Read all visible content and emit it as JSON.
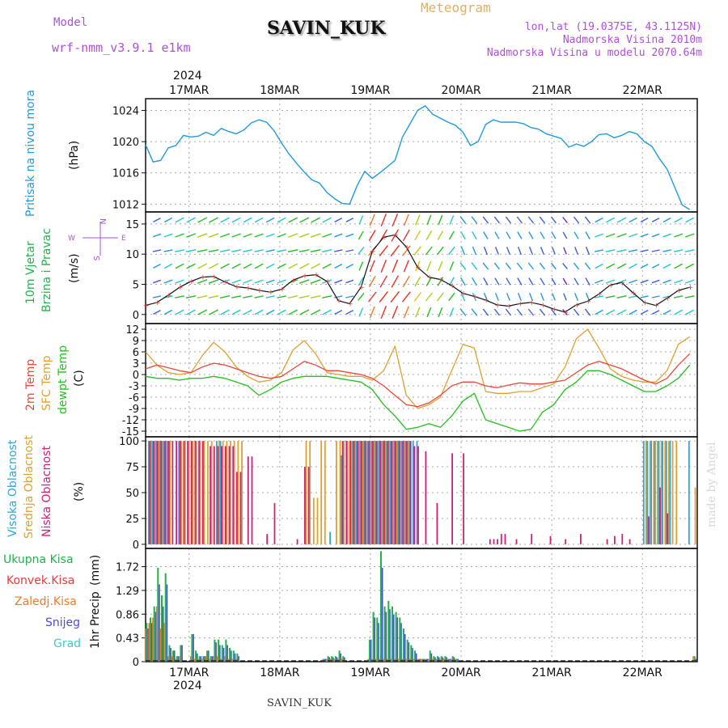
{
  "header": {
    "model_label": "Model",
    "model_name": "wrf-nmm_v3.9.1  e1km",
    "station": "SAVIN_KUK",
    "meteogram": "Meteogram",
    "lonlat": "lon,lat (19.0375E, 43.1125N)",
    "elev": "Nadmorska Visina 2010m",
    "elev_model": "Nadmorska Visina u modelu 2070.64m",
    "credit": "made by Angel",
    "footer_station": "SAVIN_KUK",
    "year_top": "2024",
    "year_bottom": "2024"
  },
  "colors": {
    "pressure": "#1e9be0",
    "temp2m": "#e84a3a",
    "sfc": "#e0a030",
    "dew": "#22c11e",
    "cloud_high": "#2aa8e0",
    "cloud_mid": "#e0a030",
    "cloud_low": "#d0207a",
    "precip_total": "#22b24a",
    "precip_conv": "#e83a3a",
    "precip_frz": "#f07a22",
    "snow": "#4a4ae0",
    "hail": "#40c8c8",
    "title_purple": "#b050d8",
    "title_orange": "#e0b060"
  },
  "chart_data": {
    "type": "meteogram",
    "x_ticks": [
      "17MAR",
      "18MAR",
      "19MAR",
      "20MAR",
      "21MAR",
      "22MAR"
    ],
    "x_unit": "hours from 16MAR 12UTC",
    "pressure": {
      "ylabel": "Pritisak na nivou mora",
      "unit": "(hPa)",
      "yticks": [
        1012,
        1016,
        1020,
        1024
      ],
      "ylim": [
        1011,
        1025.5
      ],
      "x": [
        0,
        2,
        4,
        6,
        8,
        10,
        12,
        14,
        16,
        18,
        20,
        22,
        24,
        26,
        28,
        30,
        32,
        34,
        36,
        38,
        40,
        42,
        44,
        46,
        48,
        50,
        52,
        54,
        56,
        58,
        60,
        62,
        64,
        66,
        68,
        70,
        72,
        74,
        76,
        78,
        80,
        82,
        84,
        86,
        88,
        90,
        92,
        94,
        96,
        98,
        100,
        102,
        104,
        106,
        108,
        110,
        112,
        114,
        116,
        118,
        120,
        122,
        124,
        126,
        128,
        130,
        132,
        134,
        136,
        138,
        140,
        142,
        144
      ],
      "values": [
        1019.6,
        1017.4,
        1017.6,
        1019.2,
        1019.5,
        1020.8,
        1020.6,
        1020.7,
        1021.2,
        1020.8,
        1021.7,
        1021.3,
        1021.0,
        1021.5,
        1022.4,
        1022.8,
        1022.5,
        1021.4,
        1019.8,
        1018.4,
        1017.2,
        1016.1,
        1015.1,
        1014.7,
        1013.5,
        1012.7,
        1012.1,
        1012.0,
        1014.4,
        1016.2,
        1015.3,
        1016.0,
        1016.8,
        1017.6,
        1020.6,
        1022.3,
        1024.0,
        1024.6,
        1023.5,
        1023.0,
        1022.5,
        1022.1,
        1021.2,
        1019.5,
        1020.0,
        1022.2,
        1022.8,
        1022.5,
        1022.5,
        1022.5,
        1022.3,
        1021.8,
        1021.6,
        1021.0,
        1020.7,
        1020.4,
        1019.3,
        1019.7,
        1019.4,
        1020.0,
        1020.9,
        1021.0,
        1020.5,
        1020.8,
        1021.3,
        1021.0,
        1020.0,
        1019.4,
        1017.8,
        1016.5,
        1014.2,
        1011.9,
        1011.3
      ]
    },
    "wind": {
      "ylabel": "10m Vjetar",
      "ylabel2": "Brzina i Pravac",
      "unit": "(m/s)",
      "compass": [
        "N",
        "W",
        "E",
        "S"
      ],
      "yticks": [
        0,
        5,
        10,
        15
      ],
      "ylim": [
        -1.5,
        17
      ],
      "x": [
        0,
        3,
        6,
        9,
        12,
        15,
        18,
        21,
        24,
        27,
        30,
        33,
        36,
        39,
        42,
        45,
        48,
        51,
        54,
        57,
        60,
        63,
        66,
        69,
        72,
        75,
        78,
        81,
        84,
        87,
        90,
        93,
        96,
        99,
        102,
        105,
        108,
        111,
        114,
        117,
        120,
        123,
        126,
        129,
        132,
        135,
        138,
        141,
        144
      ],
      "speed": [
        1.5,
        2.0,
        3.2,
        4.5,
        5.5,
        6.2,
        6.3,
        5.4,
        4.6,
        4.4,
        4.0,
        3.7,
        4.2,
        5.7,
        6.4,
        6.6,
        5.5,
        2.3,
        1.8,
        4.5,
        10.5,
        12.8,
        13.2,
        11.2,
        7.8,
        6.2,
        5.8,
        4.8,
        3.5,
        3.0,
        2.4,
        1.6,
        1.4,
        1.8,
        2.0,
        1.6,
        0.9,
        0.4,
        1.6,
        2.2,
        3.4,
        4.9,
        5.3,
        3.6,
        2.0,
        1.5,
        2.7,
        4.0,
        4.5
      ]
    },
    "temperature": {
      "ylabels": [
        "2m Temp",
        "SFC Temp",
        "dewpt Temp"
      ],
      "unit": "(C)",
      "yticks": [
        12,
        9,
        6,
        3,
        0,
        -3,
        -6,
        -9,
        -12,
        -15
      ],
      "ylim": [
        -16.5,
        13.5
      ],
      "x": [
        0,
        3,
        6,
        9,
        12,
        15,
        18,
        21,
        24,
        27,
        30,
        33,
        36,
        39,
        42,
        45,
        48,
        51,
        54,
        57,
        60,
        63,
        66,
        69,
        72,
        75,
        78,
        81,
        84,
        87,
        90,
        93,
        96,
        99,
        102,
        105,
        108,
        111,
        114,
        117,
        120,
        123,
        126,
        129,
        132,
        135,
        138,
        141,
        144
      ],
      "temp2m": [
        1.5,
        2.5,
        1.8,
        1.0,
        0.5,
        2.0,
        3.0,
        2.5,
        1.5,
        0.5,
        -0.5,
        -1.0,
        -0.5,
        1.5,
        3.5,
        2.5,
        1.0,
        1.0,
        0.5,
        0.0,
        -1.0,
        -3.0,
        -5.5,
        -8.0,
        -8.5,
        -7.5,
        -5.5,
        -3.0,
        -2.0,
        -2.0,
        -3.0,
        -3.5,
        -2.8,
        -2.2,
        -2.5,
        -2.5,
        -2.0,
        -1.5,
        0.5,
        2.5,
        3.5,
        2.5,
        1.5,
        0.0,
        -1.5,
        -2.5,
        -1.0,
        2.5,
        5.5
      ],
      "sfc": [
        6.0,
        2.5,
        0.5,
        0.0,
        0.5,
        5.0,
        8.5,
        6.0,
        2.0,
        -0.5,
        -2.0,
        -1.5,
        0.5,
        6.5,
        9.0,
        5.5,
        0.5,
        0.0,
        -0.5,
        -0.5,
        -1.5,
        1.0,
        7.5,
        -5.5,
        -9.0,
        -8.0,
        -6.0,
        1.0,
        8.0,
        7.0,
        -4.5,
        -5.0,
        -5.0,
        -4.5,
        -4.5,
        -3.5,
        -2.5,
        2.0,
        9.5,
        12.0,
        7.0,
        1.5,
        -0.5,
        -1.5,
        -2.0,
        -2.0,
        1.0,
        8.0,
        10.0
      ],
      "dew": [
        -0.5,
        -1.0,
        -1.0,
        -1.5,
        -1.0,
        -1.0,
        -0.5,
        -1.0,
        -2.0,
        -3.0,
        -5.5,
        -4.0,
        -2.0,
        -1.0,
        -0.5,
        -0.5,
        -0.5,
        -1.0,
        -1.5,
        -2.0,
        -4.0,
        -8.0,
        -11.0,
        -14.5,
        -14.0,
        -13.0,
        -14.0,
        -11.0,
        -7.0,
        -5.0,
        -12.0,
        -13.0,
        -14.0,
        -15.0,
        -14.5,
        -10.0,
        -8.0,
        -4.0,
        -2.0,
        1.0,
        1.0,
        0.0,
        -1.5,
        -3.0,
        -4.5,
        -4.5,
        -3.0,
        -1.0,
        2.5
      ]
    },
    "clouds": {
      "ylabels": [
        "Visoka Oblacnost",
        "Srednja Oblacnost",
        "Niska Oblacnost"
      ],
      "unit": "(%)",
      "yticks": [
        0,
        25,
        50,
        75,
        100
      ],
      "ylim": [
        -4,
        104
      ],
      "high": [
        [
          0,
          6,
          100
        ],
        [
          8,
          9,
          100
        ],
        [
          18,
          20,
          100
        ],
        [
          48,
          49,
          12
        ],
        [
          51,
          52,
          86
        ],
        [
          54,
          72,
          100
        ],
        [
          131,
          139,
          100
        ],
        [
          143,
          144,
          100
        ]
      ],
      "mid": [
        [
          1,
          7,
          100
        ],
        [
          9,
          18,
          100
        ],
        [
          19,
          26,
          100
        ],
        [
          42,
          44,
          100
        ],
        [
          44,
          46,
          45
        ],
        [
          46,
          48,
          100
        ],
        [
          50,
          70,
          100
        ],
        [
          132,
          141,
          100
        ],
        [
          145,
          146,
          55
        ]
      ],
      "low": [
        [
          0,
          12,
          100
        ],
        [
          12,
          15,
          100
        ],
        [
          16,
          23,
          95
        ],
        [
          23,
          25,
          70
        ],
        [
          26,
          28,
          85
        ],
        [
          31,
          32,
          10
        ],
        [
          33,
          34,
          40
        ],
        [
          39,
          40,
          5
        ],
        [
          41,
          43,
          75
        ],
        [
          51,
          70,
          100
        ],
        [
          70,
          72,
          95
        ],
        [
          73,
          74,
          90
        ],
        [
          76,
          77,
          40
        ],
        [
          80,
          81,
          88
        ],
        [
          83,
          84,
          88
        ],
        [
          90,
          93,
          5
        ],
        [
          93,
          95,
          10
        ],
        [
          97,
          98,
          5
        ],
        [
          101,
          102,
          10
        ],
        [
          106,
          107,
          8
        ],
        [
          110,
          111,
          5
        ],
        [
          114,
          115,
          10
        ],
        [
          121,
          122,
          5
        ],
        [
          123,
          124,
          8
        ],
        [
          125,
          126,
          10
        ],
        [
          127,
          128,
          5
        ],
        [
          132,
          133,
          27
        ],
        [
          135,
          136,
          55
        ],
        [
          137,
          138,
          30
        ]
      ]
    },
    "precip": {
      "ylabels": [
        "Ukupna Kisa",
        "Konvek.Kisa",
        "Zaledj.Kisa",
        "Snijeg",
        "Grad"
      ],
      "ylabel_axis": "1hr Precip",
      "unit": "(mm)",
      "yticks": [
        0,
        0.43,
        0.86,
        1.29,
        1.72
      ],
      "ylim": [
        0,
        2.05
      ],
      "x": [
        0.5,
        1.5,
        2.5,
        3.5,
        4.5,
        5.5,
        6.5,
        7.5,
        8.5,
        9.5,
        12.5,
        13.5,
        14.5,
        15.5,
        16.5,
        17.5,
        18.5,
        19.5,
        20.5,
        21.5,
        22.5,
        23.5,
        24.5,
        47.5,
        48.5,
        49.5,
        50.5,
        51.5,
        52.5,
        59.5,
        60.5,
        61.5,
        62.5,
        63.5,
        64.5,
        65.5,
        66.5,
        67.5,
        68.5,
        69.5,
        70.5,
        71.5,
        72.5,
        73.5,
        74.5,
        75.5,
        76.5,
        77.5,
        78.5,
        79.5,
        80.5,
        81.5,
        82.5,
        145.5
      ],
      "total": [
        0.7,
        0.8,
        1.0,
        1.7,
        1.2,
        1.6,
        0.3,
        0.2,
        0.1,
        0.3,
        0.5,
        0.2,
        0.1,
        0.1,
        0.2,
        0.1,
        0.4,
        0.4,
        0.3,
        0.4,
        0.25,
        0.2,
        0.15,
        0.05,
        0.1,
        0.1,
        0.1,
        0.2,
        0.1,
        0.4,
        0.9,
        0.8,
        2.0,
        1.0,
        1.1,
        1.0,
        0.9,
        0.8,
        0.6,
        0.4,
        0.3,
        0.2,
        0.05,
        0.05,
        0.05,
        0.2,
        0.1,
        0.1,
        0.1,
        0.1,
        0.05,
        0.1,
        0.05,
        0.1
      ],
      "snow": [
        0.6,
        0.7,
        0.9,
        1.4,
        1.0,
        1.4,
        0.25,
        0.2,
        0.1,
        0.3,
        0.5,
        0.15,
        0.1,
        0.1,
        0.2,
        0.1,
        0.35,
        0.3,
        0.25,
        0.3,
        0.2,
        0.15,
        0.1,
        0.05,
        0.08,
        0.08,
        0.08,
        0.15,
        0.08,
        0.4,
        0.8,
        0.7,
        1.7,
        0.9,
        0.95,
        0.85,
        0.8,
        0.7,
        0.5,
        0.35,
        0.25,
        0.15,
        0.05,
        0.05,
        0.05,
        0.15,
        0.08,
        0.08,
        0.08,
        0.08,
        0.05,
        0.08,
        0.05,
        0.05
      ],
      "frz": [
        0.6,
        0.7,
        0.8,
        1.0,
        0.6,
        0.7,
        0.1,
        0.1,
        0.05,
        0.1,
        0.1,
        0.05,
        0.05,
        0.05,
        0.1,
        0.05,
        0.1,
        0.1,
        0.05,
        0.1,
        0.05,
        0.05,
        0.05,
        0.05,
        0.05,
        0.05,
        0.05,
        0.05,
        0.05,
        0.05,
        0.05,
        0.05,
        0.05,
        0.05,
        0.05,
        0.05,
        0.05,
        0.05,
        0.05,
        0.05,
        0.05,
        0.05,
        0.05,
        0.05,
        0.05,
        0.05,
        0.05,
        0.05,
        0.05,
        0.05,
        0.05,
        0.05,
        0.05,
        0.1
      ]
    }
  }
}
